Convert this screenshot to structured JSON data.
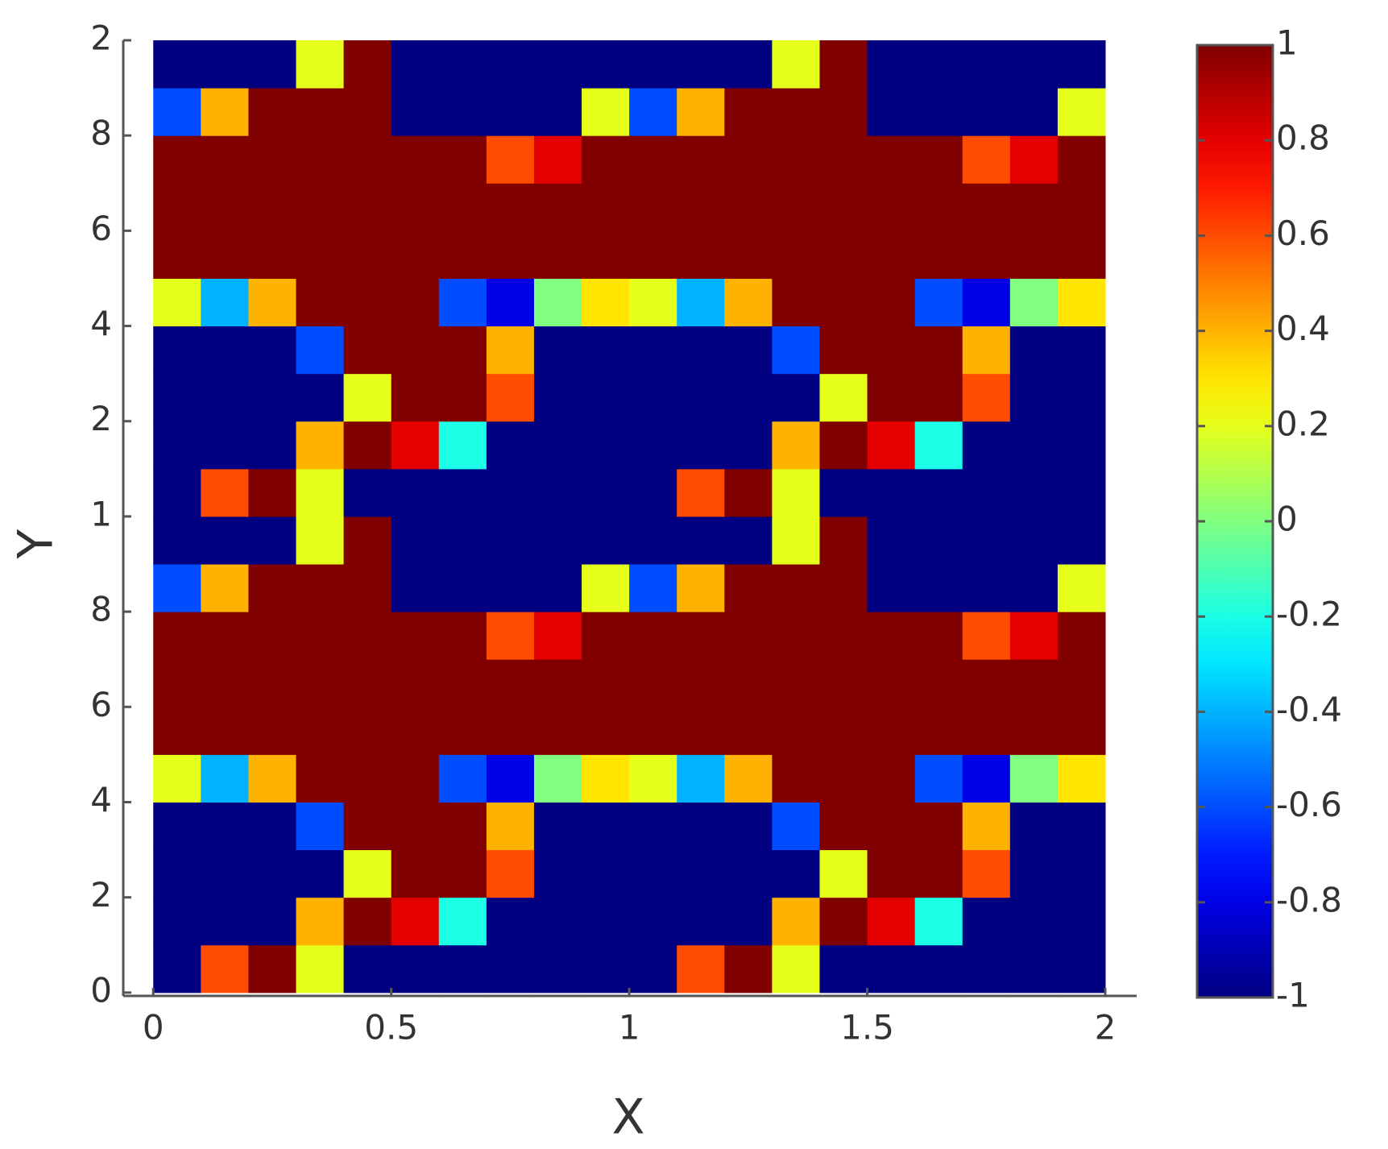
{
  "chart_data": {
    "type": "heatmap",
    "xlabel": "X",
    "ylabel": "Y",
    "x": [
      0.05,
      0.15,
      0.25,
      0.35,
      0.45,
      0.55,
      0.65,
      0.75,
      0.85,
      0.95,
      1.05,
      1.15,
      1.25,
      1.35,
      1.45,
      1.55,
      1.65,
      1.75,
      1.85,
      1.95
    ],
    "y": [
      0.05,
      0.15,
      0.25,
      0.35,
      0.45,
      0.55,
      0.65,
      0.75,
      0.85,
      0.95,
      1.05,
      1.15,
      1.25,
      1.35,
      1.45,
      1.55,
      1.65,
      1.75,
      1.85,
      1.95
    ],
    "z": [
      [
        -1,
        0.6,
        1,
        0.2,
        -1,
        -1,
        -1,
        -1,
        -1,
        -1,
        -1,
        0.6,
        1,
        0.2,
        -1,
        -1,
        -1,
        -1,
        -1,
        -1
      ],
      [
        -1,
        -1,
        -1,
        0.4,
        1,
        0.8,
        -0.2,
        -1,
        -1,
        -1,
        -1,
        -1,
        -1,
        0.4,
        1,
        0.8,
        -0.2,
        -1,
        -1,
        -1
      ],
      [
        -1,
        -1,
        -1,
        -1,
        0.2,
        1,
        1,
        0.6,
        -1,
        -1,
        -1,
        -1,
        -1,
        -1,
        0.2,
        1,
        1,
        0.6,
        -1,
        -1
      ],
      [
        -1,
        -1,
        -1,
        -0.6,
        1,
        1,
        1,
        0.4,
        -1,
        -1,
        -1,
        -1,
        -1,
        -0.6,
        1,
        1,
        1,
        0.4,
        -1,
        -1
      ],
      [
        0.2,
        -0.4,
        0.4,
        1,
        1,
        1,
        -0.6,
        -0.8,
        0,
        0.3,
        0.2,
        -0.4,
        0.4,
        1,
        1,
        1,
        -0.6,
        -0.8,
        0,
        0.3
      ],
      [
        1,
        1,
        1,
        1,
        1,
        1,
        1,
        1,
        1,
        1,
        1,
        1,
        1,
        1,
        1,
        1,
        1,
        1,
        1,
        1
      ],
      [
        1,
        1,
        1,
        1,
        1,
        1,
        1,
        1,
        1,
        1,
        1,
        1,
        1,
        1,
        1,
        1,
        1,
        1,
        1,
        1
      ],
      [
        1,
        1,
        1,
        1,
        1,
        1,
        1,
        0.6,
        0.8,
        1,
        1,
        1,
        1,
        1,
        1,
        1,
        1,
        0.6,
        0.8,
        1
      ],
      [
        -0.6,
        0.4,
        1,
        1,
        1,
        -1,
        -1,
        -1,
        -1,
        0.2,
        -0.6,
        0.4,
        1,
        1,
        1,
        -1,
        -1,
        -1,
        -1,
        0.2
      ],
      [
        -1,
        -1,
        -1,
        0.2,
        1,
        -1,
        -1,
        -1,
        -1,
        -1,
        -1,
        -1,
        -1,
        0.2,
        1,
        -1,
        -1,
        -1,
        -1,
        -1
      ],
      [
        -1,
        0.6,
        1,
        0.2,
        -1,
        -1,
        -1,
        -1,
        -1,
        -1,
        -1,
        0.6,
        1,
        0.2,
        -1,
        -1,
        -1,
        -1,
        -1,
        -1
      ],
      [
        -1,
        -1,
        -1,
        0.4,
        1,
        0.8,
        -0.2,
        -1,
        -1,
        -1,
        -1,
        -1,
        -1,
        0.4,
        1,
        0.8,
        -0.2,
        -1,
        -1,
        -1
      ],
      [
        -1,
        -1,
        -1,
        -1,
        0.2,
        1,
        1,
        0.6,
        -1,
        -1,
        -1,
        -1,
        -1,
        -1,
        0.2,
        1,
        1,
        0.6,
        -1,
        -1
      ],
      [
        -1,
        -1,
        -1,
        -0.6,
        1,
        1,
        1,
        0.4,
        -1,
        -1,
        -1,
        -1,
        -1,
        -0.6,
        1,
        1,
        1,
        0.4,
        -1,
        -1
      ],
      [
        0.2,
        -0.4,
        0.4,
        1,
        1,
        1,
        -0.6,
        -0.8,
        0,
        0.3,
        0.2,
        -0.4,
        0.4,
        1,
        1,
        1,
        -0.6,
        -0.8,
        0,
        0.3
      ],
      [
        1,
        1,
        1,
        1,
        1,
        1,
        1,
        1,
        1,
        1,
        1,
        1,
        1,
        1,
        1,
        1,
        1,
        1,
        1,
        1
      ],
      [
        1,
        1,
        1,
        1,
        1,
        1,
        1,
        1,
        1,
        1,
        1,
        1,
        1,
        1,
        1,
        1,
        1,
        1,
        1,
        1
      ],
      [
        1,
        1,
        1,
        1,
        1,
        1,
        1,
        0.6,
        0.8,
        1,
        1,
        1,
        1,
        1,
        1,
        1,
        1,
        0.6,
        0.8,
        1
      ],
      [
        -0.6,
        0.4,
        1,
        1,
        1,
        -1,
        -1,
        -1,
        -1,
        0.2,
        -0.6,
        0.4,
        1,
        1,
        1,
        -1,
        -1,
        -1,
        -1,
        0.2
      ],
      [
        -1,
        -1,
        -1,
        0.2,
        1,
        -1,
        -1,
        -1,
        -1,
        -1,
        -1,
        -1,
        -1,
        0.2,
        1,
        -1,
        -1,
        -1,
        -1,
        -1
      ]
    ],
    "xlim": [
      -0.063,
      2.066
    ],
    "ylim": [
      -0.007,
      2.0
    ],
    "xticks": [
      0,
      0.5,
      1,
      1.5,
      2
    ],
    "yticks": [
      0,
      {
        "value": 0.2,
        "label": "2"
      },
      {
        "value": 0.4,
        "label": "4"
      },
      {
        "value": 0.6,
        "label": "6"
      },
      {
        "value": 0.8,
        "label": "8"
      },
      1,
      {
        "value": 1.2,
        "label": "2"
      },
      {
        "value": 1.4,
        "label": "4"
      },
      {
        "value": 1.6,
        "label": "6"
      },
      {
        "value": 1.8,
        "label": "8"
      },
      2
    ],
    "colormap": "jet",
    "clim": [
      -1,
      1
    ],
    "cticks": [
      -1,
      -0.8,
      -0.6,
      -0.4,
      -0.2,
      0,
      0.2,
      0.4,
      0.6,
      0.8,
      1
    ]
  }
}
